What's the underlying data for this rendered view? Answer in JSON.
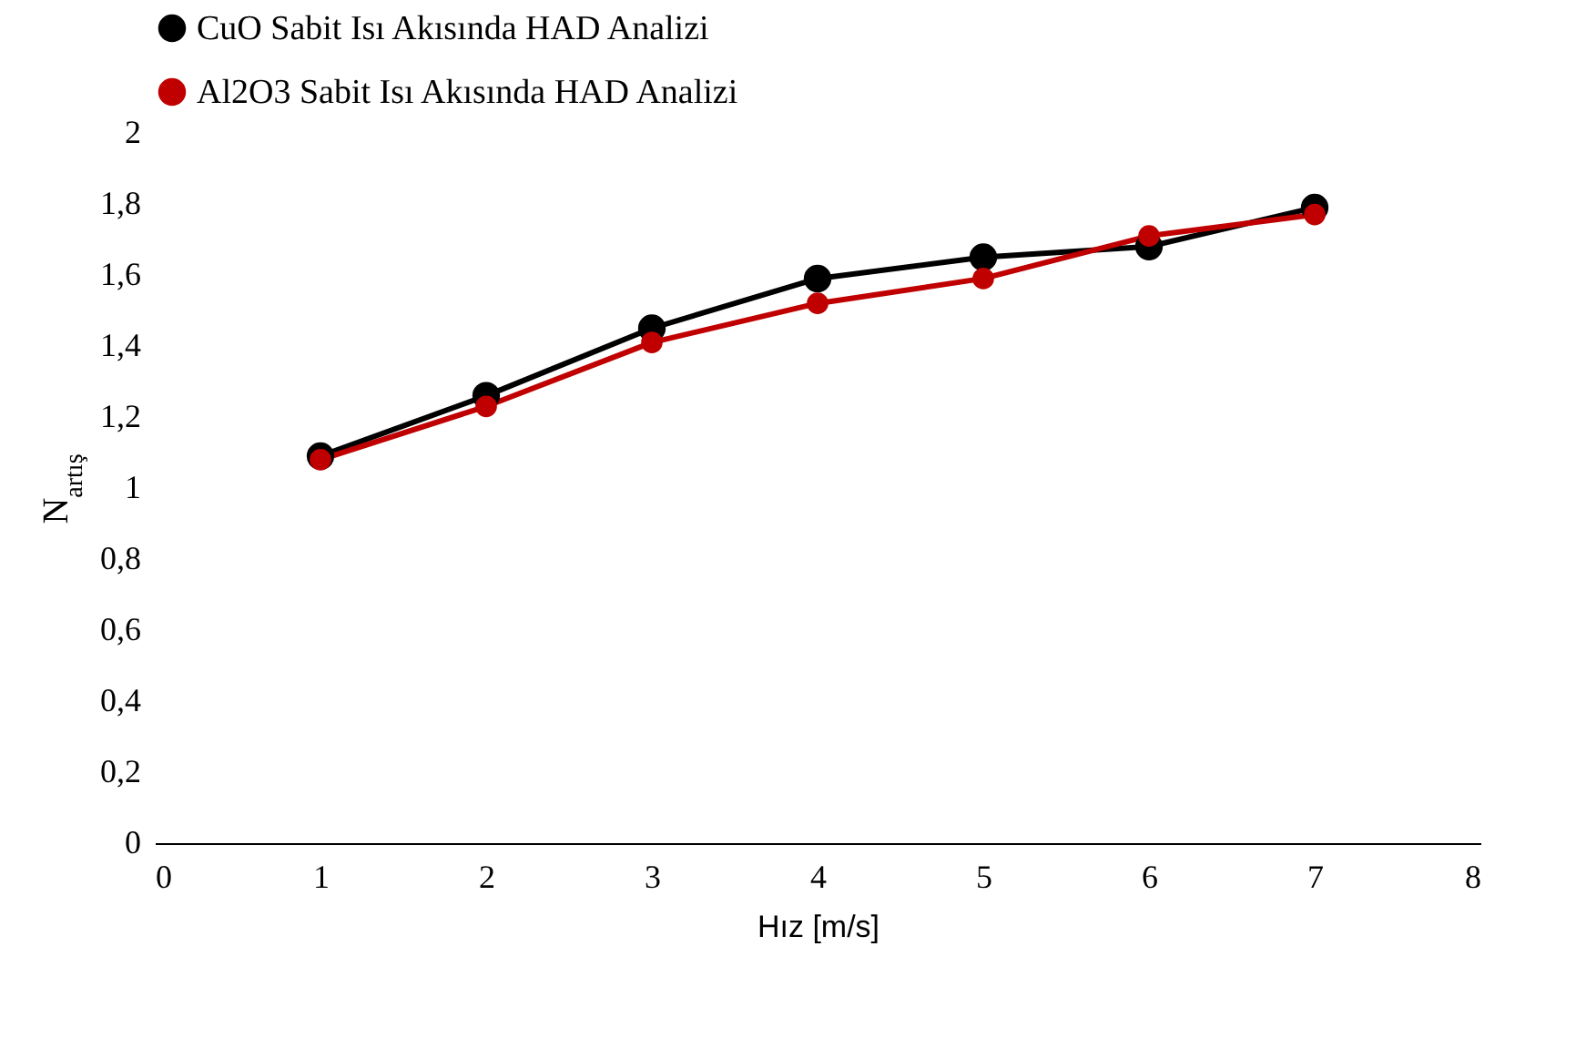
{
  "chart_data": {
    "type": "line",
    "xlabel": "Hız [m/s]",
    "ylabel": "N$_{artış}$",
    "x": [
      1,
      2,
      3,
      4,
      5,
      6,
      7
    ],
    "series": [
      {
        "name": "CuO Sabit Isı Akısında HAD Analizi",
        "color": "#000000",
        "values": [
          1.09,
          1.26,
          1.45,
          1.59,
          1.65,
          1.68,
          1.79
        ]
      },
      {
        "name": "Al2O3 Sabit Isı Akısında HAD Analizi",
        "color": "#c00000",
        "values": [
          1.08,
          1.23,
          1.41,
          1.52,
          1.59,
          1.71,
          1.77
        ]
      }
    ],
    "xlim": [
      0,
      8
    ],
    "xticks": [
      0,
      1,
      2,
      3,
      4,
      5,
      6,
      7,
      8
    ],
    "ylim": [
      0,
      2
    ],
    "yticks": [
      0,
      {
        "value": 0.2,
        "label": "0,2"
      },
      {
        "value": 0.4,
        "label": "0,4"
      },
      {
        "value": 0.6,
        "label": "0,6"
      },
      {
        "value": 0.8,
        "label": "0,8"
      },
      1,
      {
        "value": 1.2,
        "label": "1,2"
      },
      {
        "value": 1.4,
        "label": "1,4"
      },
      {
        "value": 1.6,
        "label": "1,6"
      },
      {
        "value": 1.8,
        "label": "1,8"
      },
      2
    ],
    "grid": false,
    "legend": "top",
    "marker": "circle",
    "line_style": "solid"
  }
}
